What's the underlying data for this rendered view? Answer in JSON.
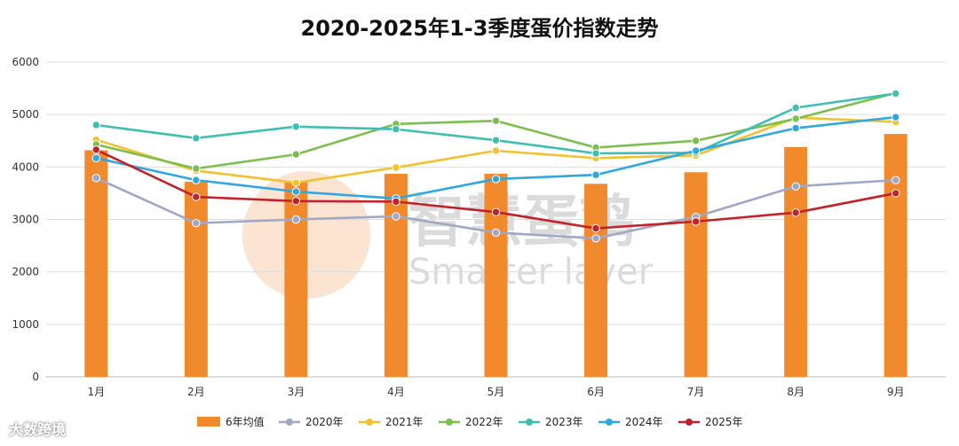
{
  "chart_data": {
    "type": "bar+line",
    "title": "2020-2025年1-3季度蛋价指数走势",
    "categories": [
      "1月",
      "2月",
      "3月",
      "4月",
      "5月",
      "6月",
      "7月",
      "8月",
      "9月"
    ],
    "ylim": [
      0,
      6000
    ],
    "yticks": [
      0,
      1000,
      2000,
      3000,
      4000,
      5000,
      6000
    ],
    "grid": true,
    "legend_position": "bottom",
    "bar_series": {
      "name": "6年均值",
      "color": "#F08A2C",
      "values": [
        4320,
        3720,
        3730,
        3870,
        3870,
        3680,
        3900,
        4380,
        4630
      ]
    },
    "series": [
      {
        "name": "2020年",
        "color": "#A0A8C8",
        "values": [
          3790,
          2930,
          3000,
          3060,
          2750,
          2640,
          3050,
          3630,
          3750
        ]
      },
      {
        "name": "2021年",
        "color": "#F2C12E",
        "values": [
          4520,
          3930,
          3700,
          3990,
          4310,
          4170,
          4220,
          4940,
          4860
        ]
      },
      {
        "name": "2022年",
        "color": "#7DBF4E",
        "values": [
          4430,
          3970,
          4240,
          4820,
          4880,
          4370,
          4500,
          4920,
          5410
        ]
      },
      {
        "name": "2023年",
        "color": "#3FBFB3",
        "values": [
          4800,
          4550,
          4770,
          4720,
          4510,
          4260,
          4270,
          5130,
          5400
        ]
      },
      {
        "name": "2024年",
        "color": "#2FA8E0",
        "values": [
          4170,
          3750,
          3530,
          3400,
          3770,
          3850,
          4310,
          4740,
          4950
        ]
      },
      {
        "name": "2025年",
        "color": "#C4222A",
        "values": [
          4330,
          3430,
          3350,
          3340,
          3140,
          2830,
          2960,
          3130,
          3500
        ]
      }
    ]
  },
  "watermark": {
    "cn": "智慧蛋鸡",
    "en": "Smarter layer"
  },
  "corner_mark": "大数跨境"
}
